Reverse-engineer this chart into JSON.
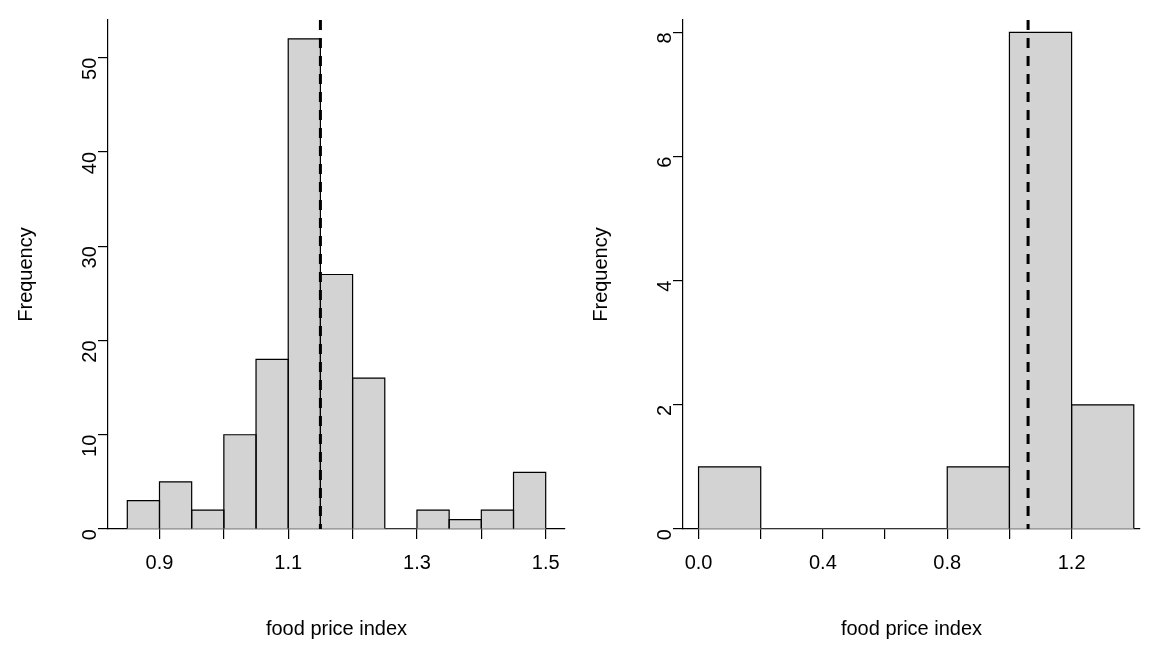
{
  "chart_data": [
    {
      "type": "histogram",
      "xlabel": "food price index",
      "ylabel": "Frequency",
      "bins": [
        0.85,
        0.9,
        0.95,
        1.0,
        1.05,
        1.1,
        1.15,
        1.2,
        1.25,
        1.3,
        1.35,
        1.4,
        1.45,
        1.5
      ],
      "values": [
        3,
        5,
        2,
        10,
        18,
        52,
        27,
        16,
        0,
        2,
        1,
        2,
        6
      ],
      "color": "#d3d3d3",
      "xlim": [
        0.82,
        1.53
      ],
      "xticks": [
        {
          "value": 0.9,
          "label": "0.9"
        },
        {
          "value": 1.0,
          "label": null
        },
        {
          "value": 1.1,
          "label": "1.1"
        },
        {
          "value": 1.2,
          "label": null
        },
        {
          "value": 1.3,
          "label": "1.3"
        },
        {
          "value": 1.4,
          "label": null
        },
        {
          "value": 1.5,
          "label": "1.5"
        }
      ],
      "ylim": [
        0,
        54
      ],
      "yticks": [
        0,
        10,
        20,
        30,
        40,
        50
      ],
      "grid": false,
      "legend": false,
      "ref_lines": [
        {
          "axis": "x",
          "value": 1.15,
          "color": "#000000",
          "line_style": "dashed"
        }
      ]
    },
    {
      "type": "histogram",
      "xlabel": "food price index",
      "ylabel": "Frequency",
      "bins": [
        0.0,
        0.2,
        0.4,
        0.6,
        0.8,
        1.0,
        1.2,
        1.4
      ],
      "values": [
        1,
        0,
        0,
        0,
        1,
        8,
        2
      ],
      "color": "#d3d3d3",
      "xlim": [
        -0.05,
        1.42
      ],
      "xticks": [
        {
          "value": 0,
          "label": "0.0"
        },
        {
          "value": 0.2,
          "label": null
        },
        {
          "value": 0.4,
          "label": "0.4"
        },
        {
          "value": 0.6,
          "label": null
        },
        {
          "value": 0.8,
          "label": "0.8"
        },
        {
          "value": 1.0,
          "label": null
        },
        {
          "value": 1.2,
          "label": "1.2"
        }
      ],
      "ylim": [
        0,
        8.2
      ],
      "yticks": [
        0,
        2,
        4,
        6,
        8
      ],
      "grid": false,
      "legend": false,
      "ref_lines": [
        {
          "axis": "x",
          "value": 1.06,
          "color": "#000000",
          "line_style": "dashed"
        }
      ]
    }
  ]
}
